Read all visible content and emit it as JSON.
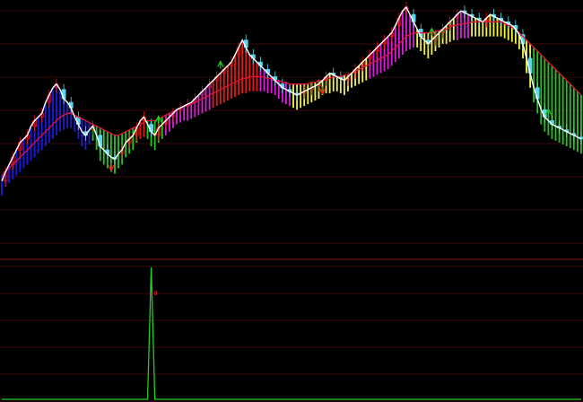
{
  "chart_data": [
    {
      "panel": "main",
      "type": "candlestick",
      "title": "",
      "xlabel": "",
      "ylabel": "",
      "ylim": [
        0,
        100
      ],
      "grid": true,
      "bar_colors": {
        "blue": "#1c1cd8",
        "green": "#22c322",
        "red": "#e01818",
        "magenta": "#d61fd6",
        "yellow": "#f2f24a"
      },
      "line_colors": {
        "close_line": "#ffffff",
        "moving_average": "#e0143c",
        "candle_cyan": "#5ad7f0"
      },
      "signal_colors": {
        "up_arrow": "#22d022",
        "down_arrow": "#ff2020"
      },
      "x": [
        0,
        1,
        2,
        3,
        4,
        5,
        6,
        7,
        8,
        9,
        10,
        11,
        12,
        13,
        14,
        15,
        16,
        17,
        18,
        19,
        20,
        21,
        22,
        23,
        24,
        25,
        26,
        27,
        28,
        29,
        30,
        31,
        32,
        33,
        34,
        35,
        36,
        37,
        38,
        39,
        40,
        41,
        42,
        43,
        44,
        45,
        46,
        47,
        48,
        49,
        50,
        51,
        52,
        53,
        54,
        55,
        56,
        57,
        58,
        59,
        60,
        61,
        62,
        63,
        64,
        65,
        66,
        67,
        68,
        69,
        70,
        71,
        72,
        73,
        74,
        75,
        76,
        77,
        78,
        79,
        80,
        81,
        82,
        83,
        84,
        85,
        86,
        87,
        88,
        89,
        90,
        91,
        92,
        93,
        94,
        95,
        96,
        97,
        98,
        99,
        100,
        101,
        102,
        103,
        104,
        105,
        106,
        107,
        108,
        109,
        110,
        111,
        112,
        113,
        114,
        115,
        116,
        117,
        118,
        119,
        120,
        121,
        122,
        123,
        124,
        125,
        126,
        127,
        128,
        129,
        130,
        131,
        132,
        133,
        134,
        135,
        136,
        137,
        138,
        139,
        140,
        141,
        142,
        143,
        144,
        145,
        146,
        147,
        148,
        149,
        150,
        151,
        152,
        153,
        154,
        155,
        156,
        157,
        158,
        159
      ],
      "close": [
        5,
        10,
        14,
        18,
        22,
        26,
        28,
        30,
        35,
        38,
        40,
        42,
        48,
        52,
        56,
        58,
        55,
        50,
        48,
        45,
        40,
        36,
        32,
        30,
        33,
        35,
        30,
        24,
        22,
        20,
        18,
        17,
        20,
        22,
        26,
        28,
        30,
        34,
        38,
        40,
        36,
        32,
        30,
        34,
        36,
        38,
        40,
        42,
        44,
        45,
        46,
        47,
        48,
        50,
        52,
        54,
        56,
        58,
        60,
        62,
        64,
        66,
        68,
        70,
        74,
        78,
        82,
        78,
        74,
        72,
        70,
        68,
        66,
        64,
        62,
        60,
        58,
        56,
        55,
        54,
        53,
        52,
        53,
        54,
        55,
        56,
        57,
        58,
        60,
        62,
        64,
        63,
        62,
        61,
        60,
        62,
        64,
        66,
        68,
        70,
        72,
        74,
        76,
        78,
        80,
        82,
        84,
        86,
        90,
        94,
        98,
        100,
        96,
        92,
        88,
        84,
        82,
        80,
        82,
        84,
        86,
        88,
        90,
        92,
        94,
        96,
        98,
        97,
        96,
        95,
        94,
        93,
        92,
        94,
        96,
        95,
        94,
        93,
        92,
        91,
        90,
        88,
        85,
        80,
        72,
        64,
        56,
        50,
        44,
        40,
        38,
        36,
        35,
        34,
        33,
        32,
        31,
        30,
        29,
        28
      ],
      "ma": [
        8,
        10,
        12,
        14,
        16,
        18,
        20,
        22,
        24,
        26,
        28,
        30,
        32,
        34,
        36,
        38,
        40,
        41,
        42,
        42,
        41,
        40,
        39,
        38,
        37,
        36,
        35,
        34,
        33,
        32,
        31,
        30,
        30,
        31,
        32,
        33,
        34,
        35,
        36,
        37,
        38,
        38,
        38,
        39,
        40,
        41,
        42,
        43,
        44,
        45,
        46,
        46,
        47,
        48,
        49,
        50,
        51,
        52,
        53,
        54,
        55,
        56,
        57,
        58,
        59,
        60,
        61,
        61,
        62,
        62,
        62,
        62,
        62,
        61,
        61,
        60,
        60,
        59,
        59,
        58,
        58,
        58,
        58,
        58,
        58,
        59,
        59,
        60,
        60,
        61,
        61,
        62,
        62,
        62,
        63,
        63,
        64,
        65,
        66,
        67,
        68,
        69,
        70,
        71,
        72,
        73,
        74,
        76,
        78,
        80,
        82,
        84,
        85,
        86,
        86,
        86,
        86,
        86,
        86,
        87,
        87,
        88,
        88,
        89,
        90,
        90,
        91,
        91,
        91,
        92,
        92,
        92,
        92,
        92,
        92,
        92,
        92,
        92,
        91,
        90,
        89,
        88,
        86,
        84,
        82,
        80,
        78,
        76,
        74,
        72,
        70,
        68,
        66,
        64,
        62,
        60,
        58,
        56,
        54,
        52
      ],
      "signals": [
        {
          "index": 30,
          "type": "down"
        },
        {
          "index": 43,
          "type": "up"
        },
        {
          "index": 60,
          "type": "up"
        },
        {
          "index": 88,
          "type": "down"
        },
        {
          "index": 118,
          "type": "up"
        },
        {
          "index": 150,
          "type": "up"
        }
      ]
    },
    {
      "panel": "sub",
      "type": "line",
      "title": "",
      "label": "↓0",
      "ylim": [
        0,
        100
      ],
      "grid": true,
      "color": "#22d022",
      "x": [
        0,
        1,
        2,
        3,
        4,
        5,
        6,
        7,
        8,
        9,
        10,
        11,
        12,
        13,
        14,
        15,
        16,
        17,
        18,
        19,
        20,
        21,
        22,
        23,
        24,
        25,
        26,
        27,
        28,
        29,
        30,
        31,
        32,
        33,
        34,
        35,
        36,
        37,
        38,
        39,
        40,
        41,
        42,
        43,
        44,
        45,
        46,
        47,
        48,
        49,
        50,
        51,
        52,
        53,
        54,
        55,
        56,
        57,
        58,
        59,
        60,
        61,
        62,
        63,
        64,
        65,
        66,
        67,
        68,
        69,
        70,
        71,
        72,
        73,
        74,
        75,
        76,
        77,
        78,
        79,
        80,
        81,
        82,
        83,
        84,
        85,
        86,
        87,
        88,
        89,
        90,
        91,
        92,
        93,
        94,
        95,
        96,
        97,
        98,
        99,
        100,
        101,
        102,
        103,
        104,
        105,
        106,
        107,
        108,
        109,
        110,
        111,
        112,
        113,
        114,
        115,
        116,
        117,
        118,
        119,
        120,
        121,
        122,
        123,
        124,
        125,
        126,
        127,
        128,
        129,
        130,
        131,
        132,
        133,
        134,
        135,
        136,
        137,
        138,
        139,
        140,
        141,
        142,
        143,
        144,
        145,
        146,
        147,
        148,
        149,
        150,
        151,
        152,
        153,
        154,
        155,
        156,
        157,
        158,
        159
      ],
      "values": [
        0,
        0,
        0,
        0,
        0,
        0,
        0,
        0,
        0,
        0,
        0,
        0,
        0,
        0,
        0,
        0,
        0,
        0,
        0,
        0,
        0,
        0,
        0,
        0,
        0,
        0,
        0,
        0,
        0,
        0,
        0,
        0,
        0,
        0,
        0,
        0,
        0,
        0,
        0,
        0,
        0,
        100,
        0,
        0,
        0,
        0,
        0,
        0,
        0,
        0,
        0,
        0,
        0,
        0,
        0,
        0,
        0,
        0,
        0,
        0,
        0,
        0,
        0,
        0,
        0,
        0,
        0,
        0,
        0,
        0,
        0,
        0,
        0,
        0,
        0,
        0,
        0,
        0,
        0,
        0,
        0,
        0,
        0,
        0,
        0,
        0,
        0,
        0,
        0,
        0,
        0,
        0,
        0,
        0,
        0,
        0,
        0,
        0,
        0,
        0,
        0,
        0,
        0,
        0,
        0,
        0,
        0,
        0,
        0,
        0,
        0,
        0,
        0,
        0,
        0,
        0,
        0,
        0,
        0,
        0,
        0,
        0,
        0,
        0,
        0,
        0,
        0,
        0,
        0,
        0,
        0,
        0,
        0,
        0,
        0,
        0,
        0,
        0,
        0,
        0,
        0,
        0,
        0,
        0,
        0,
        0,
        0,
        0,
        0,
        0,
        0,
        0,
        0,
        0,
        0,
        0,
        0,
        0,
        0,
        0
      ]
    }
  ]
}
